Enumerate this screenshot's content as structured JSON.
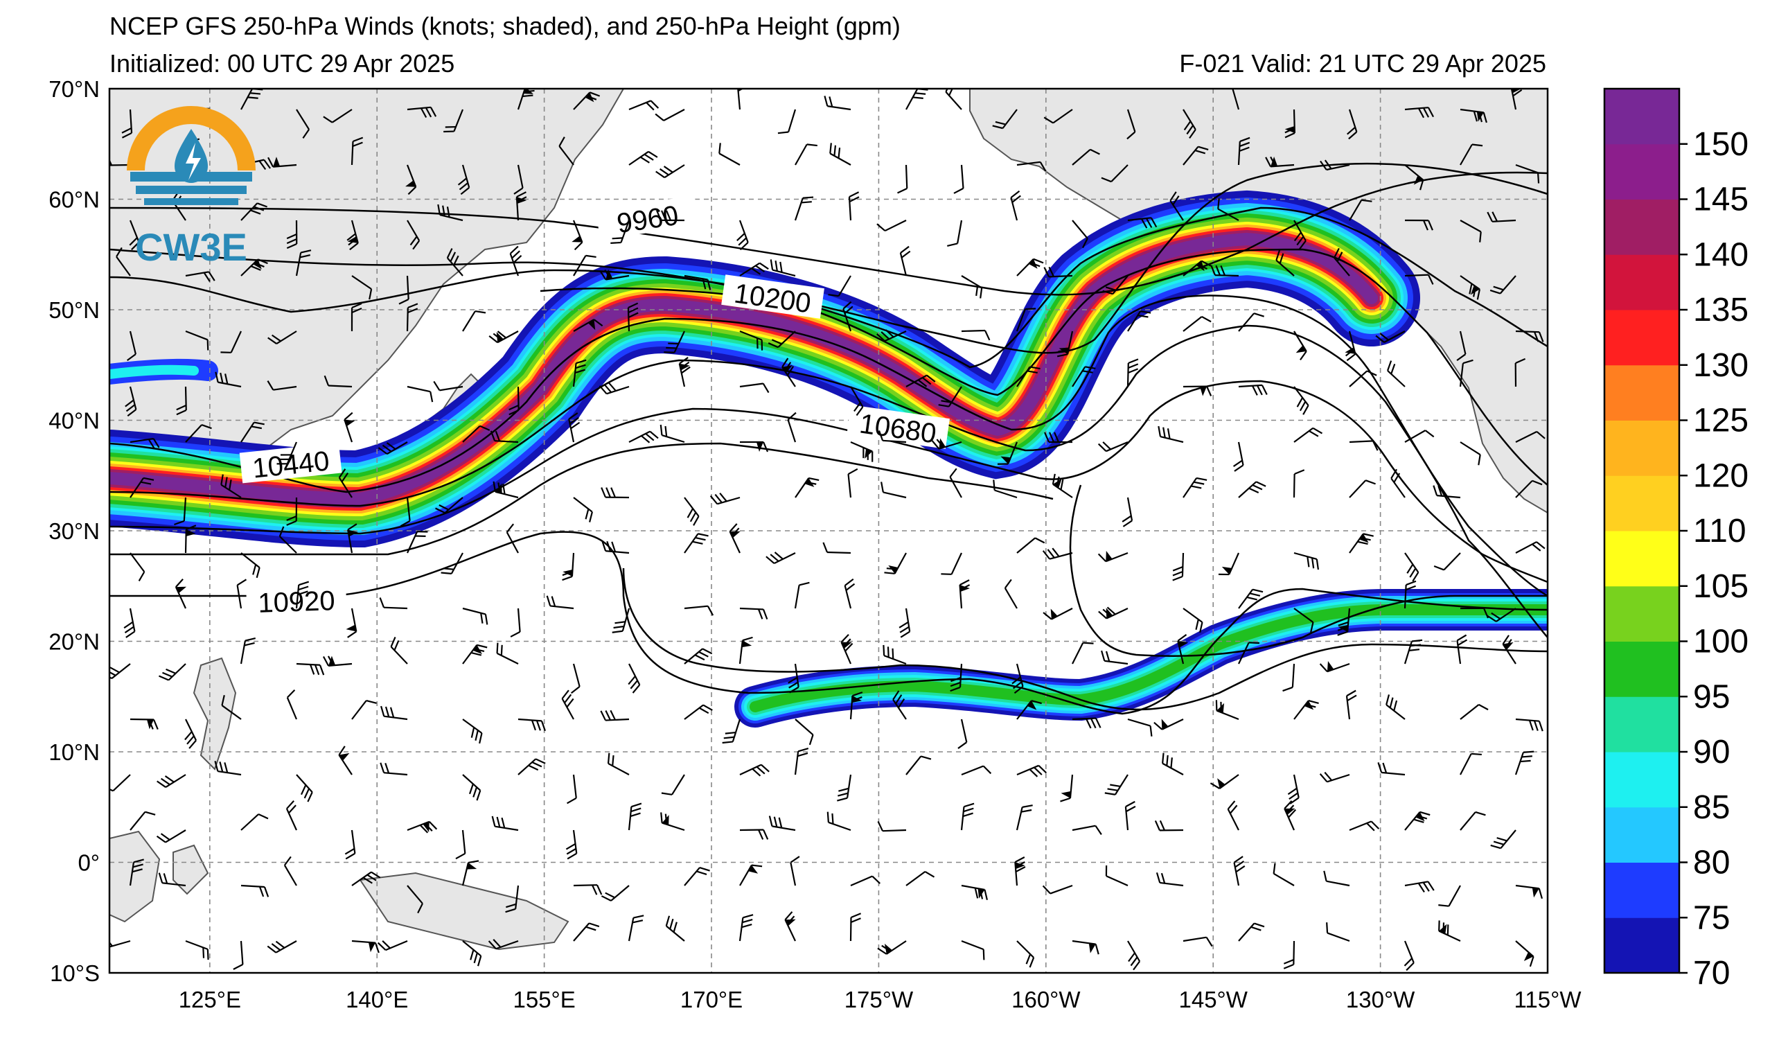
{
  "header": {
    "title": "NCEP GFS 250-hPa Winds (knots; shaded), and 250-hPa Height (gpm)",
    "initialized": "Initialized: 00 UTC 29 Apr 2025",
    "valid": "F-021  Valid: 21 UTC 29 Apr 2025"
  },
  "logo": {
    "text": "CW3E",
    "colors": {
      "orange": "#f5a21c",
      "blue": "#2a8ab8"
    }
  },
  "map": {
    "lat_labels": [
      "70°N",
      "60°N",
      "50°N",
      "40°N",
      "30°N",
      "20°N",
      "10°N",
      "0°",
      "10°S"
    ],
    "lon_labels": [
      "125°E",
      "140°E",
      "155°E",
      "170°E",
      "175°W",
      "160°W",
      "145°W",
      "130°W",
      "115°W"
    ],
    "contour_labels": [
      "9960",
      "10200",
      "10440",
      "10680",
      "10920"
    ],
    "land_color": "#e6e6e6",
    "coast_color": "#555555",
    "grid_style": "dashed"
  },
  "colorbar": {
    "ticks": [
      "150",
      "145",
      "140",
      "135",
      "130",
      "125",
      "120",
      "110",
      "105",
      "100",
      "95",
      "90",
      "85",
      "80",
      "75",
      "70"
    ],
    "colors": [
      "#1414b4",
      "#1e3cff",
      "#24c8ff",
      "#1ef0f0",
      "#20e0a0",
      "#20c020",
      "#78d21e",
      "#ffff18",
      "#ffd020",
      "#ffb41e",
      "#ff7f20",
      "#ff2020",
      "#d2143c",
      "#a01e64",
      "#8c1e8c",
      "#782896"
    ]
  }
}
